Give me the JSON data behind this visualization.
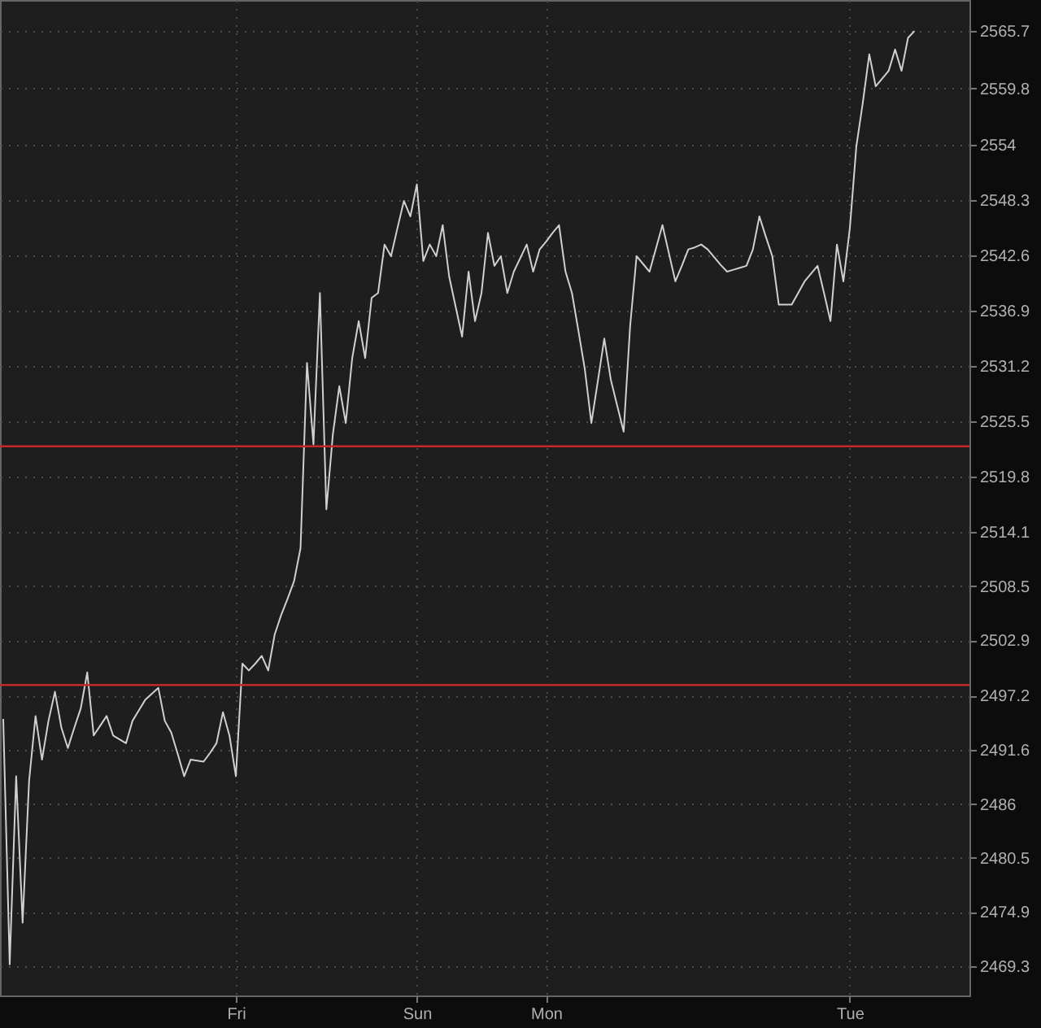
{
  "chart_data": {
    "type": "line",
    "categories": [
      null,
      null,
      null,
      null,
      null,
      null,
      null,
      null,
      null,
      null,
      null,
      null,
      null,
      null,
      null,
      null,
      null,
      null,
      null,
      null,
      null,
      null,
      null,
      null,
      null,
      null,
      null,
      null,
      null,
      null,
      null,
      null,
      null,
      null,
      null,
      null,
      "Fri",
      null,
      null,
      null,
      null,
      null,
      null,
      null,
      null,
      null,
      null,
      null,
      null,
      null,
      null,
      null,
      null,
      null,
      null,
      null,
      null,
      null,
      null,
      null,
      null,
      null,
      null,
      null,
      "Sun",
      null,
      null,
      null,
      null,
      null,
      null,
      null,
      null,
      null,
      null,
      null,
      null,
      null,
      null,
      null,
      null,
      null,
      null,
      null,
      "Mon",
      null,
      null,
      null,
      null,
      null,
      null,
      null,
      null,
      null,
      null,
      null,
      null,
      null,
      null,
      null,
      null,
      null,
      null,
      null,
      null,
      null,
      null,
      null,
      null,
      null,
      null,
      null,
      null,
      null,
      null,
      null,
      null,
      null,
      null,
      null,
      null,
      null,
      null,
      null,
      null,
      null,
      null,
      null,
      null,
      null,
      null,
      "Tue",
      null,
      null,
      null,
      null,
      null,
      null,
      null,
      null,
      null,
      null,
      null,
      null,
      null,
      null,
      null,
      null,
      null,
      null
    ],
    "series": [
      {
        "color": "#d0d0d0",
        "values": [
          2494.8,
          2469.5,
          2488.9,
          2473.8,
          2488.4,
          2495.1,
          2490.6,
          2494.6,
          2497.6,
          2493.9,
          2491.8,
          2493.9,
          2495.9,
          2499.6,
          2493.1,
          2494.1,
          2495.1,
          2493.1,
          2492.7,
          2492.3,
          2494.6,
          2495.7,
          2496.8,
          2497.4,
          2498.0,
          2494.6,
          2493.4,
          2491.2,
          2488.9,
          2490.6,
          2490.5,
          2490.4,
          2491.3,
          2492.3,
          2495.5,
          2493.1,
          2488.9,
          2500.5,
          2499.8,
          2500.5,
          2501.3,
          2499.8,
          2503.5,
          2505.5,
          2507.2,
          2509.0,
          2512.4,
          2531.5,
          2523.1,
          2538.7,
          2516.4,
          2524.1,
          2529.1,
          2525.3,
          2532.0,
          2535.8,
          2532.0,
          2538.2,
          2538.7,
          2543.7,
          2542.5,
          2545.4,
          2548.2,
          2546.6,
          2549.9,
          2542.0,
          2543.7,
          2542.5,
          2545.7,
          2540.4,
          2537.3,
          2534.2,
          2540.9,
          2535.8,
          2538.7,
          2544.9,
          2541.5,
          2542.5,
          2538.7,
          2540.9,
          2542.3,
          2543.7,
          2540.9,
          2543.2,
          2544.0,
          2544.9,
          2545.7,
          2540.9,
          2538.7,
          2534.8,
          2530.8,
          2525.3,
          2529.6,
          2534.0,
          2529.8,
          2527.1,
          2524.4,
          2535.3,
          2542.5,
          2541.7,
          2540.9,
          2543.3,
          2545.7,
          2542.8,
          2539.9,
          2541.5,
          2543.2,
          2543.4,
          2543.7,
          2543.2,
          2542.4,
          2541.6,
          2540.9,
          2541.1,
          2541.3,
          2541.5,
          2543.2,
          2546.6,
          2544.5,
          2542.5,
          2537.5,
          2537.5,
          2537.5,
          2538.7,
          2539.9,
          2540.7,
          2541.5,
          2538.7,
          2535.8,
          2543.7,
          2539.9,
          2545.4,
          2553.8,
          2558.3,
          2563.3,
          2560.0,
          2560.8,
          2561.6,
          2563.8,
          2561.6,
          2565.0,
          2565.7,
          null,
          null,
          null,
          null,
          null,
          null,
          null,
          null
        ]
      }
    ],
    "ylim": [
      2466.3,
      2568.9
    ],
    "yticks": [
      2469.3,
      2474.9,
      2480.5,
      2486,
      2491.6,
      2497.2,
      2502.9,
      2508.5,
      2514.1,
      2519.8,
      2525.5,
      2531.2,
      2536.9,
      2542.6,
      2548.3,
      2554,
      2559.8,
      2565.7
    ],
    "ref_lines": [
      {
        "axis": "y",
        "value": 2522.9,
        "color": "#c62828"
      },
      {
        "axis": "y",
        "value": 2498.3,
        "color": "#c62828"
      }
    ],
    "grid": true
  }
}
